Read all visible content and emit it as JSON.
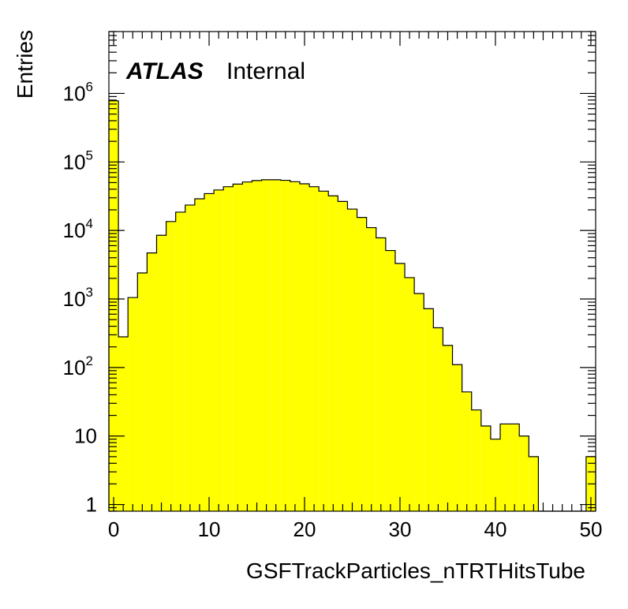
{
  "chart_data": {
    "type": "bar",
    "style": "histogram",
    "title": "",
    "xlabel": "GSFTrackParticles_nTRTHitsTube",
    "ylabel": "Entries",
    "xlim": [
      -0.5,
      50.5
    ],
    "ylim": [
      0.8,
      8000000
    ],
    "ylog": true,
    "bin_width": 1,
    "bin_low_edges": [
      -0.5,
      0.5,
      1.5,
      2.5,
      3.5,
      4.5,
      5.5,
      6.5,
      7.5,
      8.5,
      9.5,
      10.5,
      11.5,
      12.5,
      13.5,
      14.5,
      15.5,
      16.5,
      17.5,
      18.5,
      19.5,
      20.5,
      21.5,
      22.5,
      23.5,
      24.5,
      25.5,
      26.5,
      27.5,
      28.5,
      29.5,
      30.5,
      31.5,
      32.5,
      33.5,
      34.5,
      35.5,
      36.5,
      37.5,
      38.5,
      39.5,
      40.5,
      41.5,
      42.5,
      43.5,
      44.5,
      45.5,
      46.5,
      47.5,
      48.5,
      49.5
    ],
    "values": [
      780000,
      280,
      1050,
      2400,
      4700,
      8500,
      13500,
      18500,
      23500,
      29000,
      34500,
      39000,
      43500,
      47500,
      51000,
      53500,
      55000,
      55000,
      54000,
      51500,
      48000,
      43500,
      37500,
      32000,
      26500,
      20500,
      15500,
      11000,
      7800,
      5100,
      3300,
      2050,
      1200,
      720,
      380,
      210,
      110,
      44,
      24,
      14,
      9,
      15,
      15,
      10,
      5,
      0,
      0,
      0,
      0,
      0,
      5
    ],
    "fill_color": "#ffff00",
    "line_color": "#000000",
    "x_ticks": [
      0,
      10,
      20,
      30,
      40,
      50
    ],
    "x_tick_labels": [
      "0",
      "10",
      "20",
      "30",
      "40",
      "50"
    ],
    "y_ticks": [
      1,
      10,
      100,
      1000,
      10000,
      100000,
      1000000
    ],
    "y_tick_labels": [
      {
        "base": "1",
        "exp": ""
      },
      {
        "base": "10",
        "exp": ""
      },
      {
        "base": "10",
        "exp": "2"
      },
      {
        "base": "10",
        "exp": "3"
      },
      {
        "base": "10",
        "exp": "4"
      },
      {
        "base": "10",
        "exp": "5"
      },
      {
        "base": "10",
        "exp": "6"
      }
    ],
    "grid": false,
    "annotations": {
      "experiment": "ATLAS",
      "status": "Internal"
    }
  }
}
